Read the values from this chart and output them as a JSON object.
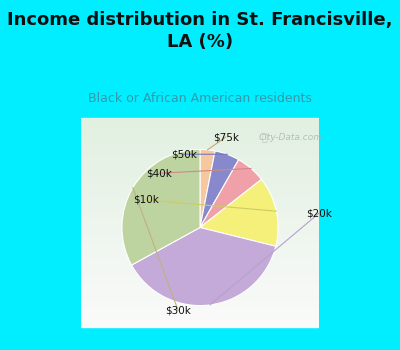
{
  "title": "Income distribution in St. Francisville,\nLA (%)",
  "subtitle": "Black or African American residents",
  "labels": [
    "$75k",
    "$50k",
    "$40k",
    "$10k",
    "$20k",
    "$30k"
  ],
  "sizes": [
    3,
    5,
    6,
    14,
    37,
    32
  ],
  "colors": [
    "#f5c8a0",
    "#8888cc",
    "#f0a0a8",
    "#f5f07a",
    "#c4aad8",
    "#bdd4a0"
  ],
  "startangle": 90,
  "bg_cyan": "#00eeff",
  "bg_chart_top": "#e0f8f8",
  "bg_chart_bottom": "#c8e8d0",
  "title_color": "#111111",
  "subtitle_color": "#3399aa",
  "watermark": "City-Data.com",
  "line_colors": {
    "$75k": "#c8a878",
    "$50k": "#7777bb",
    "$40k": "#d08888",
    "$10k": "#cccc66",
    "$20k": "#b8a0cc",
    "$30k": "#c0b080"
  }
}
